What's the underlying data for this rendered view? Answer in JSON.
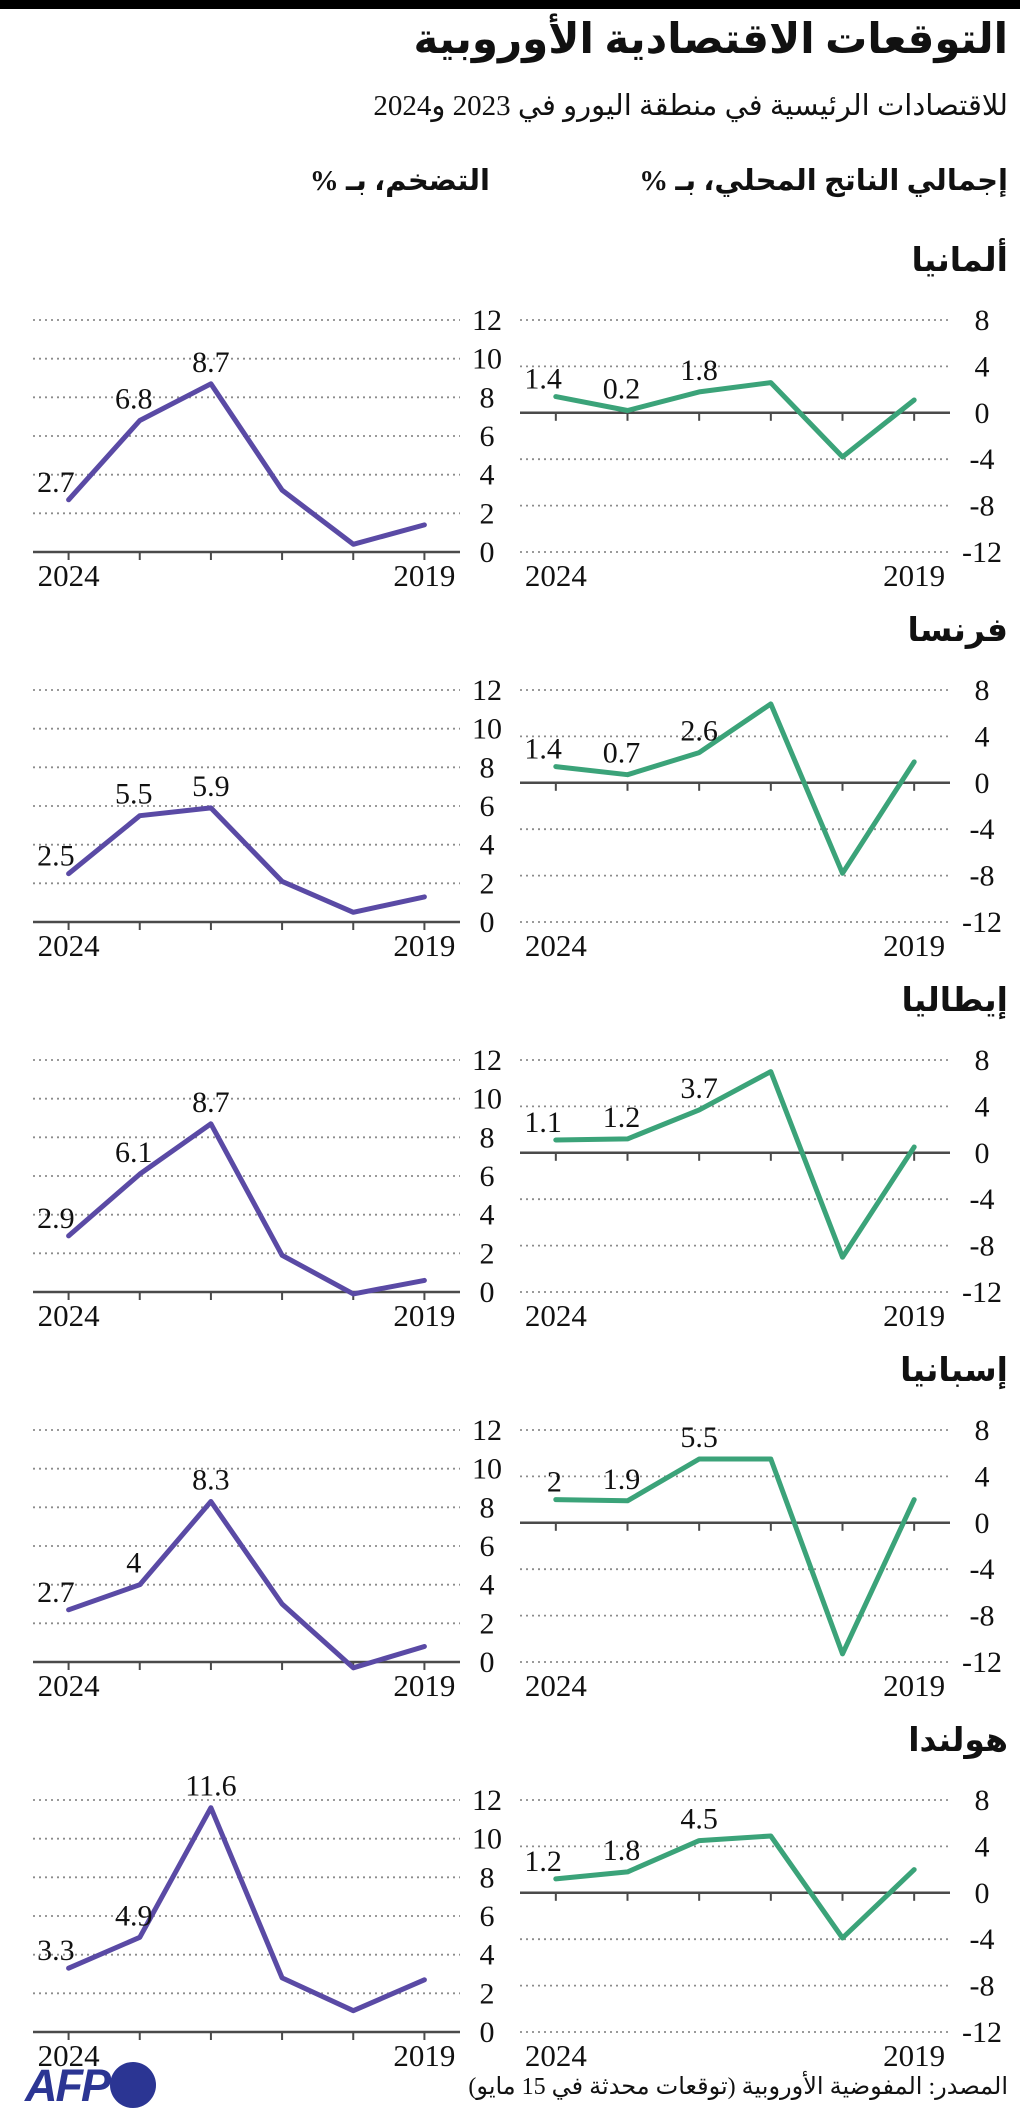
{
  "header": {
    "title": "التوقعات الاقتصادية الأوروبية",
    "subtitle": "للاقتصادات الرئيسية في منطقة اليورو في 2023 و2024",
    "column_gdp": "إجمالي الناتج المحلي، بـ %",
    "column_inflation": "التضخم، بـ %"
  },
  "axis": {
    "year_left": "2024",
    "year_right": "2019"
  },
  "colors": {
    "inflation_line": "#5a4aa5",
    "gdp_line": "#3ba379",
    "grid": "#8c8c8c",
    "axis": "#4a4a4a",
    "text": "#111111",
    "afp_blue": "#2b3593",
    "topbar": "#000000"
  },
  "countries": [
    {
      "name": "ألمانيا"
    },
    {
      "name": "فرنسا"
    },
    {
      "name": "إيطاليا"
    },
    {
      "name": "إسبانيا"
    },
    {
      "name": "هولندا"
    }
  ],
  "chart_data": [
    {
      "type": "line",
      "country": "ألمانيا",
      "metric": "inflation",
      "x": [
        2024,
        2023,
        2022,
        2021,
        2020,
        2019
      ],
      "x_reversed": true,
      "values": [
        2.7,
        6.8,
        8.7,
        3.2,
        0.4,
        1.4
      ],
      "point_labels": [
        "2.7",
        "6.8",
        "8.7"
      ],
      "ylim": [
        0,
        12
      ],
      "yticks": [
        12,
        10,
        8,
        6,
        4,
        2,
        0
      ],
      "grid": [
        12,
        10,
        8,
        6,
        4,
        2
      ]
    },
    {
      "type": "line",
      "country": "ألمانيا",
      "metric": "gdp",
      "x": [
        2024,
        2023,
        2022,
        2021,
        2020,
        2019
      ],
      "x_reversed": true,
      "values": [
        1.4,
        0.2,
        1.8,
        2.6,
        -3.8,
        1.1
      ],
      "point_labels": [
        "1.4",
        "0.2",
        "1.8"
      ],
      "ylim": [
        -12,
        8
      ],
      "yticks": [
        8,
        4,
        0,
        -4,
        -8,
        -12
      ],
      "grid": [
        8,
        4,
        -4,
        -8,
        -12
      ]
    },
    {
      "type": "line",
      "country": "فرنسا",
      "metric": "inflation",
      "x": [
        2024,
        2023,
        2022,
        2021,
        2020,
        2019
      ],
      "x_reversed": true,
      "values": [
        2.5,
        5.5,
        5.9,
        2.1,
        0.5,
        1.3
      ],
      "point_labels": [
        "2.5",
        "5.5",
        "5.9"
      ],
      "ylim": [
        0,
        12
      ],
      "yticks": [
        12,
        10,
        8,
        6,
        4,
        2,
        0
      ],
      "grid": [
        12,
        10,
        8,
        6,
        4,
        2
      ]
    },
    {
      "type": "line",
      "country": "فرنسا",
      "metric": "gdp",
      "x": [
        2024,
        2023,
        2022,
        2021,
        2020,
        2019
      ],
      "x_reversed": true,
      "values": [
        1.4,
        0.7,
        2.6,
        6.8,
        -7.8,
        1.8
      ],
      "point_labels": [
        "1.4",
        "0.7",
        "2.6"
      ],
      "ylim": [
        -12,
        8
      ],
      "yticks": [
        8,
        4,
        0,
        -4,
        -8,
        -12
      ],
      "grid": [
        8,
        4,
        -4,
        -8,
        -12
      ]
    },
    {
      "type": "line",
      "country": "إيطاليا",
      "metric": "inflation",
      "x": [
        2024,
        2023,
        2022,
        2021,
        2020,
        2019
      ],
      "x_reversed": true,
      "values": [
        2.9,
        6.1,
        8.7,
        1.9,
        -0.1,
        0.6
      ],
      "point_labels": [
        "2.9",
        "6.1",
        "8.7"
      ],
      "ylim": [
        0,
        12
      ],
      "yticks": [
        12,
        10,
        8,
        6,
        4,
        2,
        0
      ],
      "grid": [
        12,
        10,
        8,
        6,
        4,
        2
      ]
    },
    {
      "type": "line",
      "country": "إيطاليا",
      "metric": "gdp",
      "x": [
        2024,
        2023,
        2022,
        2021,
        2020,
        2019
      ],
      "x_reversed": true,
      "values": [
        1.1,
        1.2,
        3.7,
        7.0,
        -9.0,
        0.5
      ],
      "point_labels": [
        "1.1",
        "1.2",
        "3.7"
      ],
      "ylim": [
        -12,
        8
      ],
      "yticks": [
        8,
        4,
        0,
        -4,
        -8,
        -12
      ],
      "grid": [
        8,
        4,
        -4,
        -8,
        -12
      ]
    },
    {
      "type": "line",
      "country": "إسبانيا",
      "metric": "inflation",
      "x": [
        2024,
        2023,
        2022,
        2021,
        2020,
        2019
      ],
      "x_reversed": true,
      "values": [
        2.7,
        4,
        8.3,
        3.0,
        -0.3,
        0.8
      ],
      "point_labels": [
        "2.7",
        "4",
        "8.3"
      ],
      "ylim": [
        0,
        12
      ],
      "yticks": [
        12,
        10,
        8,
        6,
        4,
        2,
        0
      ],
      "grid": [
        12,
        10,
        8,
        6,
        4,
        2
      ]
    },
    {
      "type": "line",
      "country": "إسبانيا",
      "metric": "gdp",
      "x": [
        2024,
        2023,
        2022,
        2021,
        2020,
        2019
      ],
      "x_reversed": true,
      "values": [
        2,
        1.9,
        5.5,
        5.5,
        -11.3,
        2.0
      ],
      "point_labels": [
        "2",
        "1.9",
        "5.5"
      ],
      "ylim": [
        -12,
        8
      ],
      "yticks": [
        8,
        4,
        0,
        -4,
        -8,
        -12
      ],
      "grid": [
        8,
        4,
        -4,
        -8,
        -12
      ]
    },
    {
      "type": "line",
      "country": "هولندا",
      "metric": "inflation",
      "x": [
        2024,
        2023,
        2022,
        2021,
        2020,
        2019
      ],
      "x_reversed": true,
      "values": [
        3.3,
        4.9,
        11.6,
        2.8,
        1.1,
        2.7
      ],
      "point_labels": [
        "3.3",
        "4.9",
        "11.6"
      ],
      "ylim": [
        0,
        12
      ],
      "yticks": [
        12,
        10,
        8,
        6,
        4,
        2,
        0
      ],
      "grid": [
        12,
        10,
        8,
        6,
        4,
        2
      ]
    },
    {
      "type": "line",
      "country": "هولندا",
      "metric": "gdp",
      "x": [
        2024,
        2023,
        2022,
        2021,
        2020,
        2019
      ],
      "x_reversed": true,
      "values": [
        1.2,
        1.8,
        4.5,
        4.9,
        -3.9,
        2.0
      ],
      "point_labels": [
        "1.2",
        "1.8",
        "4.5"
      ],
      "ylim": [
        -12,
        8
      ],
      "yticks": [
        8,
        4,
        0,
        -4,
        -8,
        -12
      ],
      "grid": [
        8,
        4,
        -4,
        -8,
        -12
      ]
    }
  ],
  "footer": {
    "source": "المصدر: المفوضية الأوروبية (توقعات محدثة في 15 مايو)",
    "logo_text": "AFP"
  }
}
